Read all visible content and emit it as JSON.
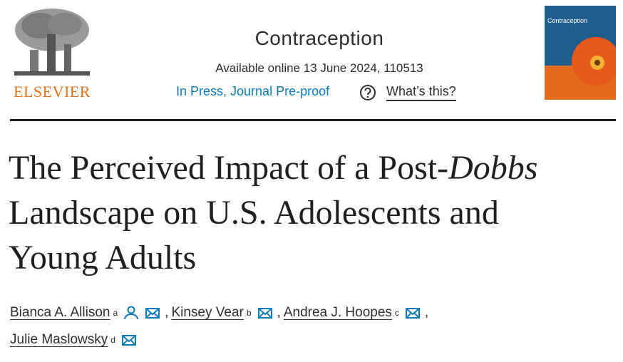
{
  "header": {
    "publisher": "ELSEVIER",
    "journal": "Contraception",
    "availability": "Available online 13 June 2024, 110513",
    "status": "In Press, Journal Pre-proof",
    "help": "What’s this?",
    "cover_title": "Contraception"
  },
  "article": {
    "title": {
      "line1": "The Perceived Impact of a Post-",
      "italic": "Dobbs",
      "line2": "Landscape on U.S. Adolescents and",
      "line3": "Young Adults"
    },
    "separator": ",",
    "authors": [
      {
        "name": "Bianca A. Allison",
        "affiliation": "a"
      },
      {
        "name": "Kinsey Vear",
        "affiliation": "b"
      },
      {
        "name": "Andrea J. Hoopes",
        "affiliation": "c"
      },
      {
        "name": "Julie Maslowsky",
        "affiliation": "d"
      }
    ]
  }
}
